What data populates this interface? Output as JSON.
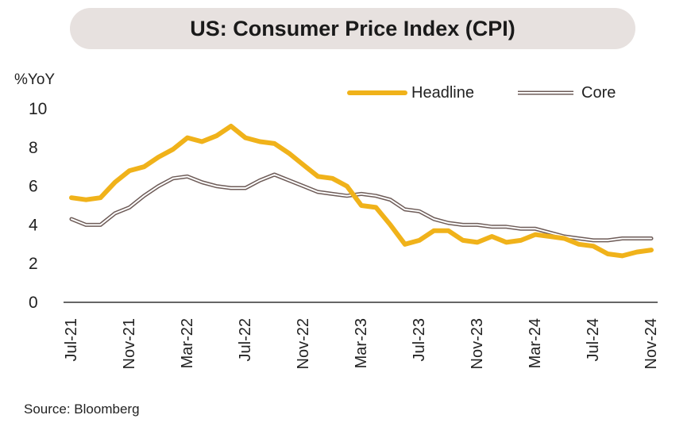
{
  "title": "US: Consumer Price Index (CPI)",
  "source": "Source: Bloomberg",
  "chart_data": {
    "type": "line",
    "ylabel": "%YoY",
    "ylim": [
      0,
      10
    ],
    "yticks": [
      0,
      2,
      4,
      6,
      8,
      10
    ],
    "x_tick_labels": [
      "Jul-21",
      "Nov-21",
      "Mar-22",
      "Jul-22",
      "Nov-22",
      "Mar-23",
      "Jul-23",
      "Nov-23",
      "Mar-24",
      "Jul-24",
      "Nov-24"
    ],
    "x": [
      "Jul-21",
      "Aug-21",
      "Sep-21",
      "Oct-21",
      "Nov-21",
      "Dec-21",
      "Jan-22",
      "Feb-22",
      "Mar-22",
      "Apr-22",
      "May-22",
      "Jun-22",
      "Jul-22",
      "Aug-22",
      "Sep-22",
      "Oct-22",
      "Nov-22",
      "Dec-22",
      "Jan-23",
      "Feb-23",
      "Mar-23",
      "Apr-23",
      "May-23",
      "Jun-23",
      "Jul-23",
      "Aug-23",
      "Sep-23",
      "Oct-23",
      "Nov-23",
      "Dec-23",
      "Jan-24",
      "Feb-24",
      "Mar-24",
      "Apr-24",
      "May-24",
      "Jun-24",
      "Jul-24",
      "Aug-24",
      "Sep-24",
      "Oct-24",
      "Nov-24"
    ],
    "legend_position": "top-right",
    "grid": false,
    "series": [
      {
        "name": "Headline",
        "color": "#f0b21a",
        "style": "solid",
        "values": [
          5.4,
          5.3,
          5.4,
          6.2,
          6.8,
          7.0,
          7.5,
          7.9,
          8.5,
          8.3,
          8.6,
          9.1,
          8.5,
          8.3,
          8.2,
          7.7,
          7.1,
          6.5,
          6.4,
          6.0,
          5.0,
          4.9,
          4.0,
          3.0,
          3.2,
          3.7,
          3.7,
          3.2,
          3.1,
          3.4,
          3.1,
          3.2,
          3.5,
          3.4,
          3.3,
          3.0,
          2.9,
          2.5,
          2.4,
          2.6,
          2.7
        ]
      },
      {
        "name": "Core",
        "color": "#6e5c58",
        "style": "hollow",
        "values": [
          4.3,
          4.0,
          4.0,
          4.6,
          4.9,
          5.5,
          6.0,
          6.4,
          6.5,
          6.2,
          6.0,
          5.9,
          5.9,
          6.3,
          6.6,
          6.3,
          6.0,
          5.7,
          5.6,
          5.5,
          5.6,
          5.5,
          5.3,
          4.8,
          4.7,
          4.3,
          4.1,
          4.0,
          4.0,
          3.9,
          3.9,
          3.8,
          3.8,
          3.6,
          3.4,
          3.3,
          3.2,
          3.2,
          3.3,
          3.3,
          3.3
        ]
      }
    ]
  }
}
